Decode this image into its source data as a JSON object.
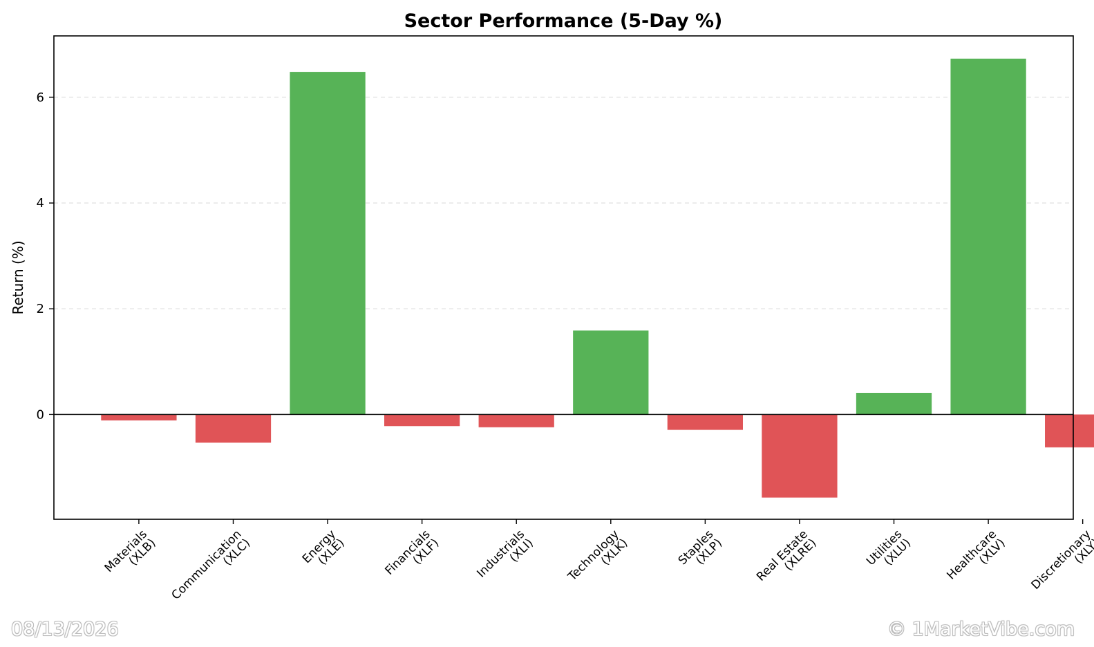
{
  "chart_data": {
    "type": "bar",
    "title": "Sector Performance (5-Day %)",
    "xlabel": "",
    "ylabel": "Return (%)",
    "ylim": [
      -1.98,
      7.16
    ],
    "yticks": [
      0,
      2,
      4,
      6
    ],
    "grid": true,
    "categories": [
      "Materials\n(XLB)",
      "Communication\n(XLC)",
      "Energy\n(XLE)",
      "Financials\n(XLF)",
      "Industrials\n(XLI)",
      "Technology\n(XLK)",
      "Staples\n(XLP)",
      "Real Estate\n(XLRE)",
      "Utilities\n(XLU)",
      "Healthcare\n(XLV)",
      "Discretionary\n(XLY)"
    ],
    "values": [
      -0.11,
      -0.53,
      6.48,
      -0.22,
      -0.24,
      1.59,
      -0.29,
      -1.57,
      0.41,
      6.73,
      -0.62
    ],
    "colors": {
      "positive": "#57b357",
      "negative": "#e05457",
      "zero_line": "#000000"
    }
  },
  "footer": {
    "date": "08/13/2026",
    "copyright": "© 1MarketVibe.com"
  }
}
